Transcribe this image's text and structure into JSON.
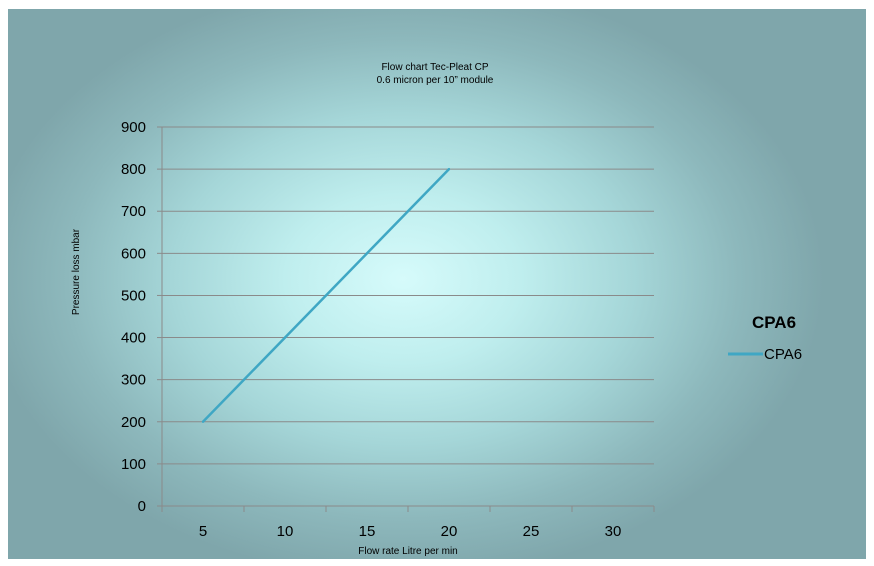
{
  "chart_data": {
    "type": "line",
    "title": "Flow chart Tec-Pleat CP",
    "subtitle": "0.6 micron per 10”  module",
    "xlabel": "Flow rate Litre per min",
    "ylabel": "Pressure loss mbar",
    "categories": [
      "5",
      "10",
      "15",
      "20",
      "25",
      "30"
    ],
    "y_ticks": [
      "0",
      "100",
      "200",
      "300",
      "400",
      "500",
      "600",
      "700",
      "800",
      "900"
    ],
    "ylim": [
      0,
      900
    ],
    "grid": true,
    "legend_placement": "right",
    "legend_title": "CPA6",
    "series": [
      {
        "name": "CPA6",
        "color": "#3fa7c4",
        "x": [
          5,
          20
        ],
        "values": [
          200,
          800
        ]
      }
    ]
  }
}
